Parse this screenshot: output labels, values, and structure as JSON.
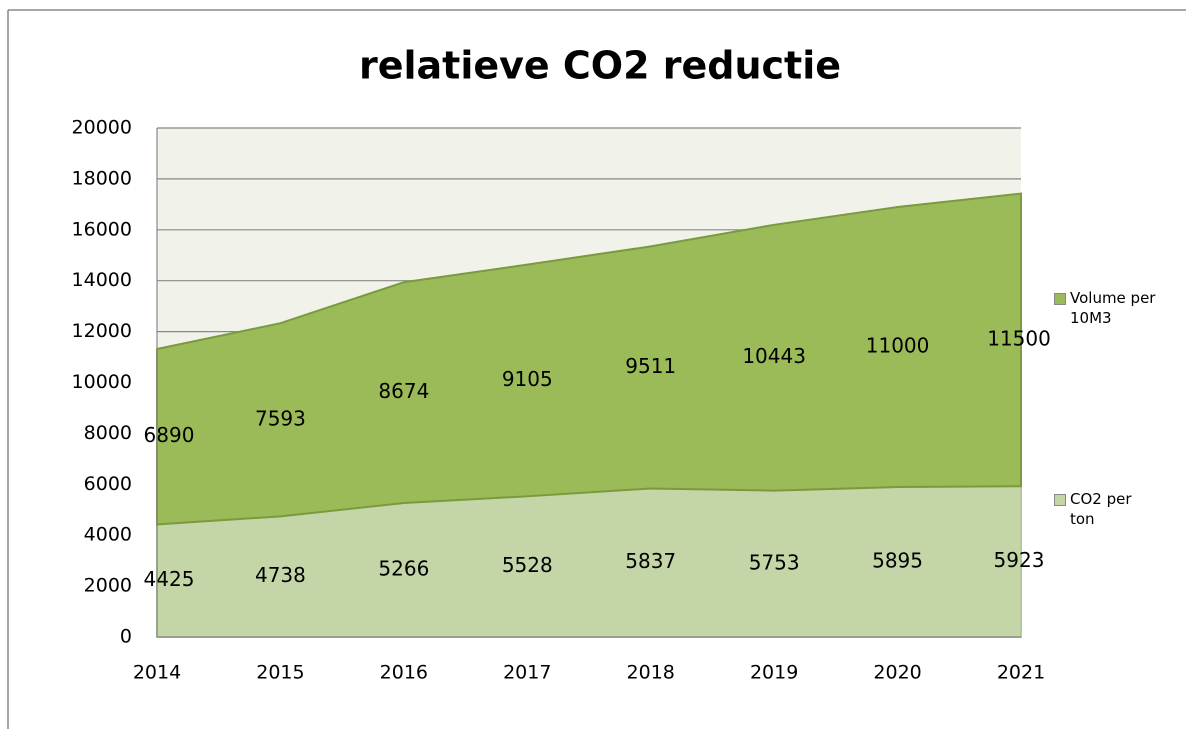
{
  "chart_data": {
    "type": "area",
    "stacked": true,
    "title": "relatieve CO2 reductie",
    "categories": [
      "2014",
      "2015",
      "2016",
      "2017",
      "2018",
      "2019",
      "2020",
      "2021"
    ],
    "series": [
      {
        "name": "CO2 per ton",
        "color": "#c4d6a8",
        "values": [
          4425,
          4738,
          5266,
          5528,
          5837,
          5753,
          5895,
          5923
        ]
      },
      {
        "name": "Volume per 10M3",
        "color": "#9bbb59",
        "values": [
          6890,
          7593,
          8674,
          9105,
          9511,
          10443,
          11000,
          11500
        ]
      }
    ],
    "ylim": [
      0,
      20000
    ],
    "yticks": [
      0,
      2000,
      4000,
      6000,
      8000,
      10000,
      12000,
      14000,
      16000,
      18000,
      20000
    ],
    "grid": true,
    "legend": "right",
    "data_labels": true
  }
}
